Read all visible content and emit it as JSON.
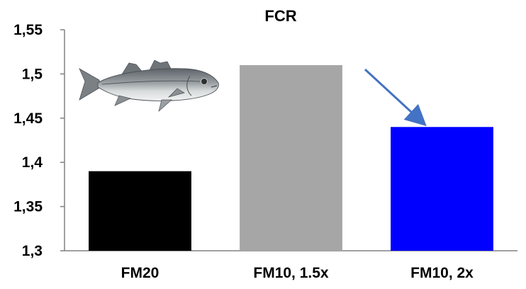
{
  "chart_data": {
    "type": "bar",
    "title": "FCR",
    "xlabel": "",
    "ylabel": "",
    "categories": [
      "FM20",
      "FM10, 1.5x",
      "FM10, 2x"
    ],
    "values": [
      1.39,
      1.51,
      1.44
    ],
    "bar_colors": [
      "#000000",
      "#a6a6a6",
      "#0000ff"
    ],
    "ylim": [
      1.3,
      1.55
    ],
    "yticks": [
      1.3,
      1.35,
      1.4,
      1.45,
      1.5,
      1.55
    ],
    "ytick_labels": [
      "1,3",
      "1,35",
      "1,4",
      "1,45",
      "1,5",
      "1,55"
    ],
    "grid": false,
    "legend": "none",
    "annotations": [
      {
        "type": "arrow",
        "color": "#4472c4",
        "points_to": "FM10, 2x"
      },
      {
        "type": "image",
        "subject": "fish-illustration"
      }
    ]
  }
}
